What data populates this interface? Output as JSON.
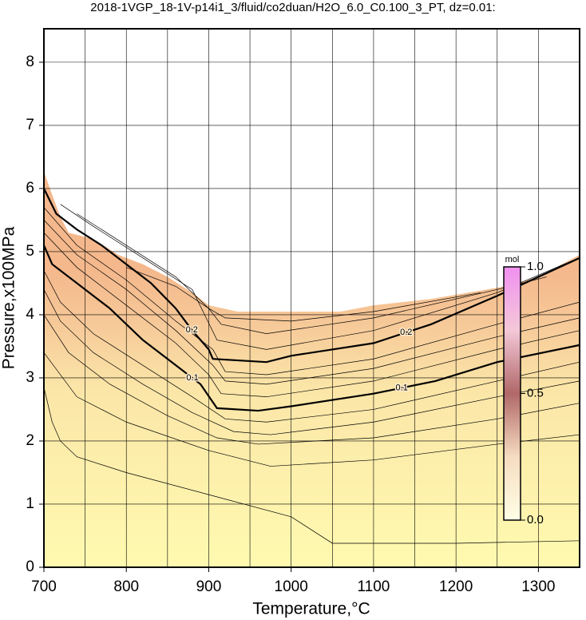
{
  "chart_data": {
    "type": "contour",
    "title": "2018-1VGP_18-1V-p14i1_3/fluid/co2duan/H2O_6.0_C0.100_3_PT, dz=0.01:",
    "x_label": "Temperature,°C",
    "y_label": "Pressure,x100MPa",
    "xlim": [
      700,
      1350
    ],
    "ylim": [
      0,
      8.53
    ],
    "xticks": [
      700,
      800,
      900,
      1000,
      1100,
      1200,
      1300
    ],
    "xminorticks": [
      750,
      850,
      950,
      1050,
      1150,
      1250
    ],
    "yticks": [
      0,
      1,
      2,
      3,
      4,
      5,
      6,
      7,
      8
    ],
    "grid": true,
    "boundary": {
      "x": [
        700,
        710,
        720,
        730,
        760,
        790,
        820,
        850,
        880,
        900,
        935,
        1000,
        1060,
        1100,
        1170,
        1260,
        1300,
        1350
      ],
      "y": [
        6.27,
        5.9,
        5.55,
        5.3,
        5.2,
        4.95,
        4.8,
        4.6,
        4.35,
        4.15,
        4.05,
        4.05,
        4.05,
        4.15,
        4.25,
        4.45,
        4.6,
        4.95
      ]
    },
    "contours": [
      {
        "level": 0.01,
        "bold": false,
        "x": [
          700,
          710,
          720,
          740,
          800,
          900,
          1000,
          1050,
          1200,
          1350
        ],
        "y": [
          2.85,
          2.3,
          2.0,
          1.75,
          1.5,
          1.15,
          0.8,
          0.38,
          0.38,
          0.42
        ]
      },
      {
        "level": 0.02,
        "bold": false,
        "x": [
          700,
          740,
          800,
          900,
          975,
          1100,
          1250,
          1350
        ],
        "y": [
          3.4,
          2.7,
          2.3,
          1.85,
          1.6,
          1.7,
          1.95,
          2.1
        ]
      },
      {
        "level": 0.04,
        "bold": false,
        "x": [
          700,
          730,
          780,
          850,
          910,
          960,
          1100,
          1250,
          1350
        ],
        "y": [
          4.0,
          3.4,
          2.9,
          2.4,
          2.05,
          1.95,
          2.05,
          2.35,
          2.6
        ]
      },
      {
        "level": 0.06,
        "bold": false,
        "x": [
          700,
          720,
          760,
          820,
          880,
          930,
          975,
          1100,
          1250,
          1350
        ],
        "y": [
          4.4,
          3.9,
          3.4,
          2.9,
          2.45,
          2.15,
          2.1,
          2.3,
          2.7,
          2.95
        ]
      },
      {
        "level": 0.08,
        "bold": false,
        "x": [
          700,
          720,
          760,
          820,
          880,
          920,
          970,
          1100,
          1250,
          1350
        ],
        "y": [
          4.7,
          4.2,
          3.7,
          3.2,
          2.7,
          2.35,
          2.3,
          2.5,
          2.95,
          3.25
        ]
      },
      {
        "level": 0.1,
        "bold": true,
        "x": [
          700,
          710,
          740,
          780,
          820,
          860,
          890,
          910,
          960,
          1000,
          1100,
          1175,
          1250,
          1350
        ],
        "y": [
          5.1,
          4.8,
          4.5,
          4.1,
          3.6,
          3.2,
          2.9,
          2.52,
          2.48,
          2.55,
          2.75,
          2.95,
          3.25,
          3.52
        ]
      },
      {
        "level": 0.12,
        "bold": false,
        "x": [
          700,
          740,
          800,
          860,
          900,
          915,
          970,
          1100,
          1250,
          1350
        ],
        "y": [
          5.3,
          4.75,
          4.15,
          3.55,
          3.05,
          2.75,
          2.7,
          2.95,
          3.45,
          3.75
        ]
      },
      {
        "level": 0.14,
        "bold": false,
        "x": [
          700,
          740,
          800,
          860,
          905,
          920,
          970,
          1100,
          1250,
          1350
        ],
        "y": [
          5.5,
          4.95,
          4.4,
          3.75,
          3.2,
          2.95,
          2.9,
          3.15,
          3.65,
          3.95
        ]
      },
      {
        "level": 0.16,
        "bold": false,
        "x": [
          700,
          740,
          800,
          860,
          905,
          920,
          970,
          1100,
          1250,
          1350
        ],
        "y": [
          5.7,
          5.1,
          4.55,
          3.9,
          3.45,
          3.1,
          3.05,
          3.3,
          3.85,
          4.2
        ]
      },
      {
        "level": 0.2,
        "bold": true,
        "x": [
          700,
          715,
          740,
          770,
          800,
          830,
          860,
          880,
          900,
          905,
          970,
          1000,
          1100,
          1170,
          1250,
          1350
        ],
        "y": [
          6.0,
          5.6,
          5.35,
          5.1,
          4.8,
          4.5,
          4.1,
          3.75,
          3.45,
          3.3,
          3.25,
          3.35,
          3.55,
          3.85,
          4.3,
          4.9
        ]
      },
      {
        "level": 0.24,
        "bold": false,
        "x": [
          720,
          760,
          820,
          880,
          910,
          970,
          1100,
          1250,
          1340
        ],
        "y": [
          5.75,
          5.4,
          4.9,
          4.4,
          3.6,
          3.45,
          3.75,
          4.35,
          4.85
        ]
      },
      {
        "level": 0.28,
        "bold": false,
        "x": [
          740,
          800,
          860,
          900,
          915,
          970,
          1100,
          1250,
          1310
        ],
        "y": [
          5.6,
          5.1,
          4.6,
          4.1,
          3.85,
          3.7,
          3.95,
          4.4,
          4.6
        ]
      },
      {
        "level": 0.32,
        "bold": false,
        "x": [
          800,
          860,
          900,
          920,
          1000,
          1100,
          1230
        ],
        "y": [
          4.75,
          4.45,
          4.1,
          3.95,
          3.9,
          4.05,
          4.35
        ]
      }
    ],
    "colorbar": {
      "title": "mol",
      "lim": [
        0,
        1
      ],
      "ticks": [
        {
          "value": 0,
          "label": "0.0"
        },
        0.5,
        {
          "value": 1,
          "label": "1.0"
        }
      ],
      "colors": [
        "#ffffe6",
        "#f6dcc0",
        "#b06868",
        "#f4c8d8",
        "#f090f0"
      ]
    }
  }
}
